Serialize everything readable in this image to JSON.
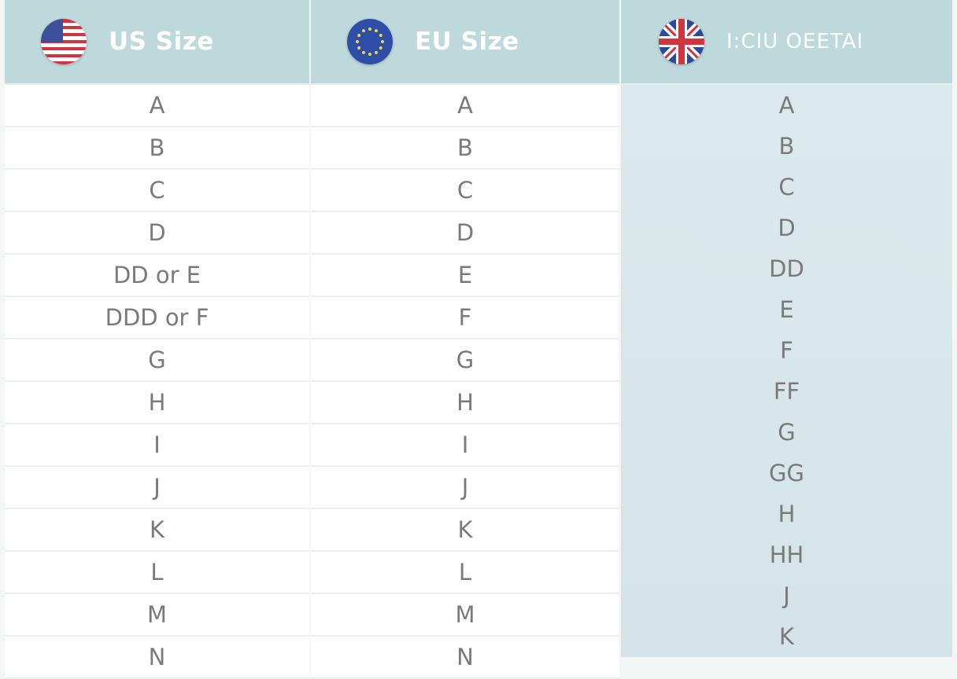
{
  "columns": [
    {
      "header": "US Size",
      "flag_icon": "us-flag-icon",
      "values": [
        "A",
        "B",
        "C",
        "D",
        "DD or E",
        "DDD or F",
        "G",
        "H",
        "I",
        "J",
        "K",
        "L",
        "M",
        "N"
      ]
    },
    {
      "header": "EU Size",
      "flag_icon": "eu-flag-icon",
      "values": [
        "A",
        "B",
        "C",
        "D",
        "E",
        "F",
        "G",
        "H",
        "I",
        "J",
        "K",
        "L",
        "M",
        "N"
      ]
    },
    {
      "header": "I:CIU OEETAI",
      "flag_icon": "uk-flag-icon",
      "values": [
        "A",
        "B",
        "C",
        "D",
        "DD",
        "E",
        "F",
        "FF",
        "G",
        "GG",
        "H",
        "HH",
        "J",
        "K"
      ]
    }
  ],
  "colors": {
    "header_bg": "#bdd9db",
    "text": "#7a7a7a",
    "uk_column_bg": "#dce9ec"
  }
}
